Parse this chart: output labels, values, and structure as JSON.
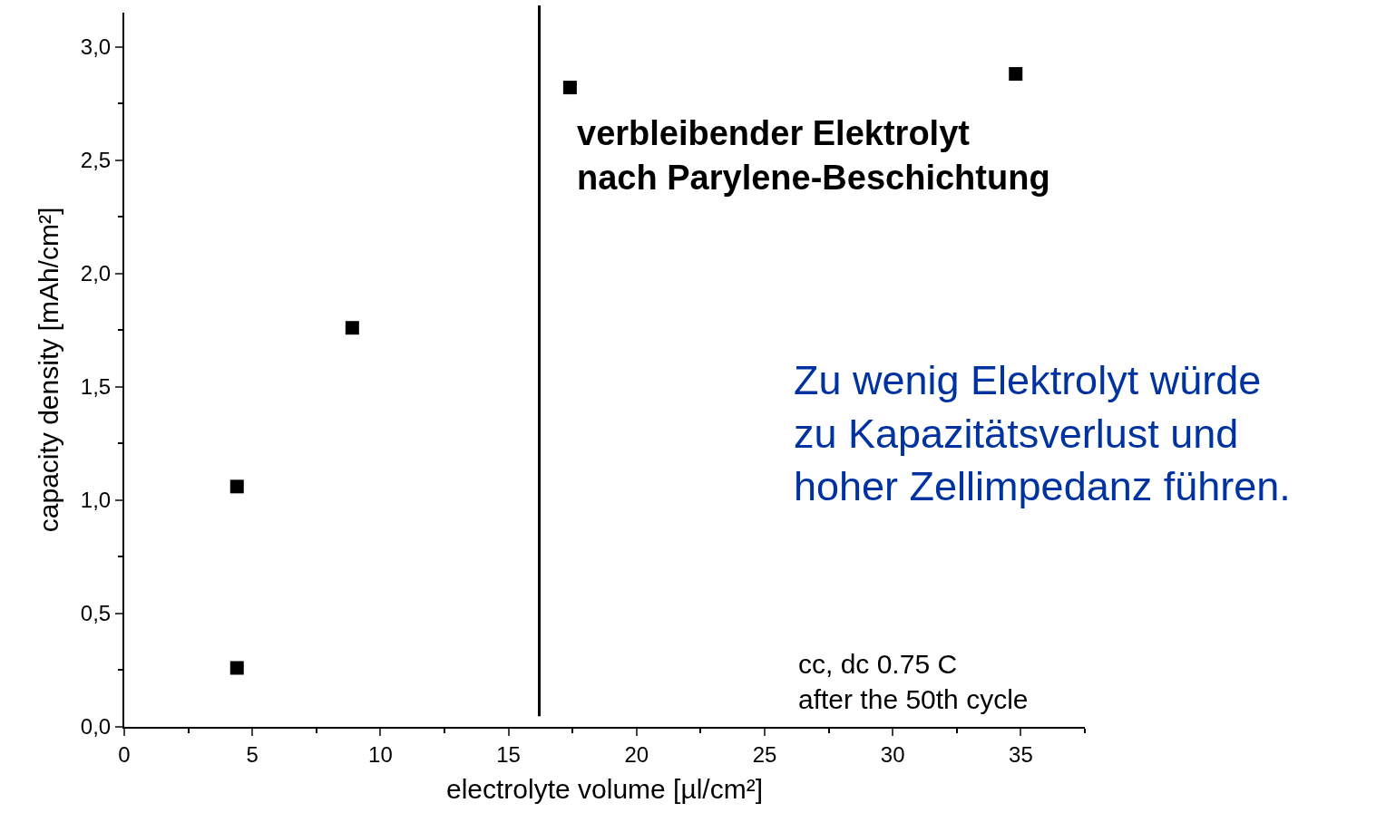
{
  "chart_data": {
    "type": "scatter",
    "xlabel": "electrolyte volume [µl/cm²]",
    "ylabel": "capacity density [mAh/cm²]",
    "x": [
      4.4,
      4.4,
      8.9,
      17.4,
      34.8
    ],
    "series": [
      {
        "color": "#000000",
        "values": [
          0.26,
          1.06,
          1.76,
          2.82,
          2.88
        ]
      }
    ],
    "marker": "square",
    "xlim": [
      0,
      37.5
    ],
    "ylim": [
      0,
      3.15
    ],
    "xticks": [
      0,
      5,
      10,
      15,
      20,
      25,
      30,
      35
    ],
    "yticks": [
      {
        "value": 0,
        "label": "0,0"
      },
      {
        "value": 0.5,
        "label": "0,5"
      },
      {
        "value": 1,
        "label": "1,0"
      },
      {
        "value": 1.5,
        "label": "1,5"
      },
      {
        "value": 2,
        "label": "2,0"
      },
      {
        "value": 2.5,
        "label": "2,5"
      },
      {
        "value": 3,
        "label": "3,0"
      }
    ],
    "ref_lines": [
      {
        "axis": "x",
        "value": 16.2,
        "color": "#000000"
      }
    ],
    "annotations": [
      "verbleibender Elektrolyt\nnach Parylene-Beschichtung",
      "Zu wenig Elektrolyt würde\nzu Kapazitätsverlust und\nhoher Zellimpedanz führen.",
      "cc, dc 0.75 C\nafter the 50th cycle"
    ],
    "tick_labels": [
      "x",
      "y"
    ]
  }
}
